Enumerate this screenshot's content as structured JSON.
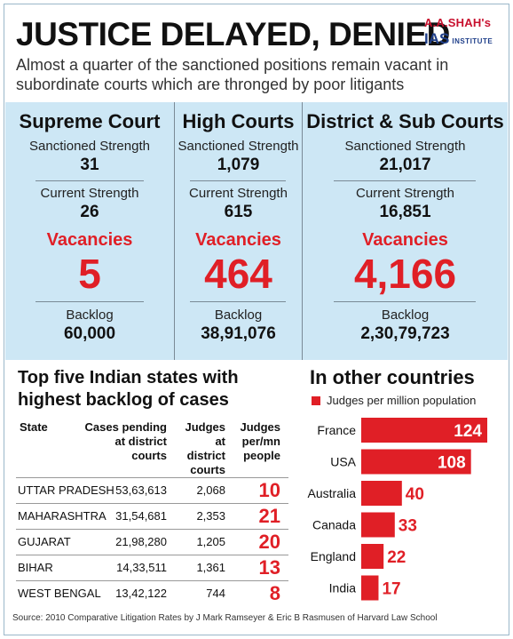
{
  "title": "JUSTICE DELAYED, DENIED",
  "subtitle": "Almost a quarter of the sanctioned positions remain vacant in subordinate courts which are thronged by poor litigants",
  "logo": {
    "top": "A.A.SHAH's",
    "ias": "IAS",
    "institute": "INSTITUTE"
  },
  "labels": {
    "sanctioned": "Sanctioned Strength",
    "current": "Current Strength",
    "vacancies": "Vacancies",
    "backlog": "Backlog"
  },
  "courts": [
    {
      "name": "Supreme Court",
      "sanctioned": "31",
      "current": "26",
      "vacancies": "5",
      "backlog": "60,000"
    },
    {
      "name": "High Courts",
      "sanctioned": "1,079",
      "current": "615",
      "vacancies": "464",
      "backlog": "38,91,076"
    },
    {
      "name": "District & Sub Courts",
      "sanctioned": "21,017",
      "current": "16,851",
      "vacancies": "4,166",
      "backlog": "2,30,79,723"
    }
  ],
  "states_table": {
    "title": "Top five Indian states with highest  backlog of cases",
    "headers": {
      "state": "State",
      "pending": [
        "Cases pending",
        "at district",
        "courts"
      ],
      "judges": [
        "Judges at",
        "district",
        "courts"
      ],
      "per_mn": [
        "Judges",
        "per/mn",
        "people"
      ]
    },
    "rows": [
      {
        "state": "UTTAR PRADESH",
        "pending": "53,63,613",
        "judges": "2,068",
        "per_mn": "10"
      },
      {
        "state": "MAHARASHTRA",
        "pending": "31,54,681",
        "judges": "2,353",
        "per_mn": "21"
      },
      {
        "state": "GUJARAT",
        "pending": "21,98,280",
        "judges": "1,205",
        "per_mn": "20"
      },
      {
        "state": "BIHAR",
        "pending": "14,33,511",
        "judges": "1,361",
        "per_mn": "13"
      },
      {
        "state": "WEST BENGAL",
        "pending": "13,42,122",
        "judges": "744",
        "per_mn": "8"
      }
    ]
  },
  "chart_data": {
    "type": "bar",
    "orientation": "horizontal",
    "title": "In other countries",
    "legend": "Judges per million population",
    "legend_position": "top-left",
    "categories": [
      "France",
      "USA",
      "Australia",
      "Canada",
      "England",
      "India"
    ],
    "values": [
      124,
      108,
      40,
      33,
      22,
      17
    ],
    "series": [
      {
        "name": "Judges per million population",
        "values": [
          124,
          108,
          40,
          33,
          22,
          17
        ]
      }
    ],
    "xlim": [
      0,
      124
    ],
    "grid": false,
    "bar_color": "#e01f26"
  },
  "colors": {
    "accent": "#e01f26",
    "panel": "#cde7f5",
    "logo_blue": "#1f3f8a"
  },
  "source": "Source: 2010 Comparative Litigation Rates by J Mark Ramseyer & Eric B Rasmusen of Harvard Law School"
}
